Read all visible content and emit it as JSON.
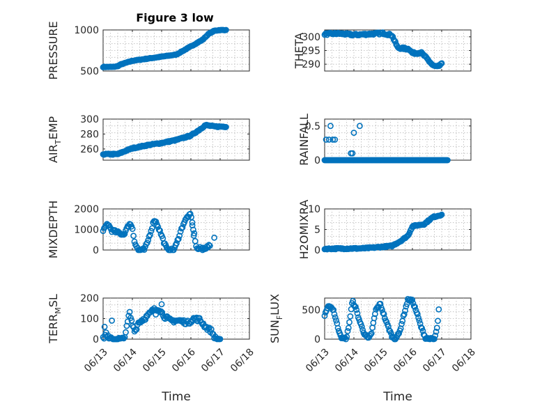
{
  "figure": {
    "title": "Figure 3 low"
  },
  "colors": {
    "marker": "#0072bd",
    "axis": "#262626",
    "grid": "#b8b8b8"
  },
  "chart_data": [
    {
      "type": "scatter",
      "id": "pressure",
      "ylabel": "PRESSURE",
      "ylabel_sub": "",
      "ylim": [
        500,
        1000
      ],
      "yticks": [
        500,
        1000
      ],
      "xlim": [
        0,
        5
      ],
      "show_xticklabels": false,
      "curve": [
        [
          0.0,
          550
        ],
        [
          0.35,
          550
        ],
        [
          0.5,
          560
        ],
        [
          0.6,
          580
        ],
        [
          1.0,
          625
        ],
        [
          1.5,
          650
        ],
        [
          2.0,
          675
        ],
        [
          2.5,
          700
        ],
        [
          2.8,
          760
        ],
        [
          3.1,
          820
        ],
        [
          3.4,
          880
        ],
        [
          3.6,
          950
        ],
        [
          3.8,
          990
        ],
        [
          4.0,
          1000
        ],
        [
          4.2,
          1000
        ]
      ],
      "n_points": 140,
      "scatter_spread": 4,
      "extra_points": []
    },
    {
      "type": "scatter",
      "id": "theta",
      "ylabel": "THETA",
      "ylabel_sub": "",
      "ylim": [
        287.5,
        302.5
      ],
      "yticks": [
        290,
        295,
        300
      ],
      "xlim": [
        0,
        5
      ],
      "show_xticklabels": false,
      "curve": [
        [
          0.0,
          301
        ],
        [
          0.5,
          301.2
        ],
        [
          1.0,
          300.7
        ],
        [
          1.5,
          301
        ],
        [
          2.0,
          301.3
        ],
        [
          2.3,
          300.6
        ],
        [
          2.5,
          296
        ],
        [
          2.9,
          295.5
        ],
        [
          3.0,
          294
        ],
        [
          3.3,
          294.2
        ],
        [
          3.5,
          292
        ],
        [
          3.7,
          289.5
        ],
        [
          3.85,
          289
        ],
        [
          4.0,
          290
        ]
      ],
      "n_points": 140,
      "scatter_spread": 0.35,
      "extra_points": []
    },
    {
      "type": "scatter",
      "id": "air_temp",
      "ylabel": "AIR",
      "ylabel_sub": "T",
      "ylabel_tail": "EMP",
      "ylim": [
        245,
        300
      ],
      "yticks": [
        260,
        280,
        300
      ],
      "xlim": [
        0,
        5
      ],
      "show_xticklabels": false,
      "curve": [
        [
          0.0,
          253
        ],
        [
          0.5,
          253
        ],
        [
          0.8,
          258
        ],
        [
          1.0,
          261
        ],
        [
          1.5,
          265
        ],
        [
          2.0,
          268
        ],
        [
          2.5,
          272
        ],
        [
          3.0,
          278
        ],
        [
          3.3,
          286
        ],
        [
          3.5,
          292
        ],
        [
          3.8,
          290
        ],
        [
          4.2,
          290
        ]
      ],
      "n_points": 140,
      "scatter_spread": 0.8,
      "extra_points": []
    },
    {
      "type": "scatter",
      "id": "rainfall",
      "ylabel": "RAINFALL",
      "ylabel_sub": "",
      "ylim": [
        0,
        0.6
      ],
      "yticks": [
        0,
        0.5
      ],
      "xlim": [
        0,
        5
      ],
      "show_xticklabels": false,
      "curve": [
        [
          0.0,
          0
        ],
        [
          4.2,
          0
        ]
      ],
      "n_points": 150,
      "scatter_spread": 0,
      "extra_points": [
        [
          0.05,
          0.3
        ],
        [
          0.15,
          0.3
        ],
        [
          0.2,
          0.5
        ],
        [
          0.28,
          0.3
        ],
        [
          0.35,
          0.3
        ],
        [
          0.9,
          0.1
        ],
        [
          0.95,
          0.1
        ],
        [
          1.0,
          0.4
        ],
        [
          1.2,
          0.5
        ]
      ]
    },
    {
      "type": "scatter",
      "id": "mixdepth",
      "ylabel": "MIXDEPTH",
      "ylabel_sub": "",
      "ylim": [
        0,
        2000
      ],
      "yticks": [
        0,
        1000,
        2000
      ],
      "xlim": [
        0,
        5
      ],
      "show_xticklabels": false,
      "curve": [
        [
          0.0,
          900
        ],
        [
          0.15,
          1300
        ],
        [
          0.3,
          950
        ],
        [
          0.5,
          850
        ],
        [
          0.7,
          750
        ],
        [
          0.8,
          1000
        ],
        [
          0.9,
          1300
        ],
        [
          1.0,
          1100
        ],
        [
          1.05,
          600
        ],
        [
          1.1,
          300
        ],
        [
          1.2,
          0
        ],
        [
          1.4,
          0
        ],
        [
          1.5,
          300
        ],
        [
          1.65,
          1000
        ],
        [
          1.75,
          1500
        ],
        [
          1.85,
          1250
        ],
        [
          2.0,
          700
        ],
        [
          2.1,
          300
        ],
        [
          2.2,
          0
        ],
        [
          2.4,
          0
        ],
        [
          2.5,
          250
        ],
        [
          2.6,
          700
        ],
        [
          2.75,
          1300
        ],
        [
          2.9,
          1650
        ],
        [
          3.0,
          1700
        ],
        [
          3.2,
          50
        ],
        [
          3.5,
          100
        ],
        [
          3.65,
          200
        ]
      ],
      "n_points": 110,
      "scatter_spread": 70,
      "extra_points": [
        [
          3.05,
          1200
        ],
        [
          3.1,
          700
        ],
        [
          3.8,
          600
        ],
        [
          2.3,
          0
        ],
        [
          3.4,
          0
        ]
      ]
    },
    {
      "type": "scatter",
      "id": "h2omixra",
      "ylabel": "H2OMIXRA",
      "ylabel_sub": "",
      "ylim": [
        0,
        10
      ],
      "yticks": [
        0,
        5,
        10
      ],
      "xlim": [
        0,
        5
      ],
      "show_xticklabels": false,
      "curve": [
        [
          0.0,
          0.3
        ],
        [
          1.3,
          0.4
        ],
        [
          1.7,
          0.6
        ],
        [
          2.3,
          1
        ],
        [
          2.6,
          2.2
        ],
        [
          2.85,
          3.5
        ],
        [
          3.0,
          5.8
        ],
        [
          3.4,
          6.3
        ],
        [
          3.7,
          8
        ],
        [
          4.0,
          8.6
        ]
      ],
      "n_points": 140,
      "scatter_spread": 0.15,
      "extra_points": []
    },
    {
      "type": "scatter",
      "id": "terr_msl",
      "ylabel": "TERR",
      "ylabel_sub": "M",
      "ylabel_tail": "SL",
      "ylim": [
        0,
        200
      ],
      "yticks": [
        0,
        100,
        200
      ],
      "xlim": [
        0,
        5
      ],
      "xticklabels": [
        "06/13",
        "06/14",
        "06/15",
        "06/16",
        "06/17",
        "06/18"
      ],
      "xlabel": "Time",
      "curve": [
        [
          0.0,
          0
        ],
        [
          0.1,
          30
        ],
        [
          0.2,
          0
        ],
        [
          0.5,
          0
        ],
        [
          0.7,
          0
        ],
        [
          0.8,
          50
        ],
        [
          0.9,
          130
        ],
        [
          1.0,
          70
        ],
        [
          1.1,
          40
        ],
        [
          1.2,
          80
        ],
        [
          1.5,
          110
        ],
        [
          1.7,
          140
        ],
        [
          1.9,
          150
        ],
        [
          2.1,
          110
        ],
        [
          2.3,
          90
        ],
        [
          2.6,
          90
        ],
        [
          2.9,
          80
        ],
        [
          3.1,
          100
        ],
        [
          3.3,
          95
        ],
        [
          3.5,
          60
        ],
        [
          3.7,
          40
        ],
        [
          3.85,
          0
        ],
        [
          4.0,
          0
        ]
      ],
      "n_points": 120,
      "scatter_spread": 10,
      "extra_points": [
        [
          0.05,
          60
        ],
        [
          0.3,
          90
        ],
        [
          2.45,
          90
        ],
        [
          3.2,
          90
        ],
        [
          2.0,
          170
        ],
        [
          1.8,
          120
        ]
      ]
    },
    {
      "type": "scatter",
      "id": "sun_flux",
      "ylabel": "SUN",
      "ylabel_sub": "F",
      "ylabel_tail": "LUX",
      "ylim": [
        0,
        700
      ],
      "yticks": [
        0,
        500
      ],
      "xlim": [
        0,
        5
      ],
      "xticklabels": [
        "06/13",
        "06/14",
        "06/15",
        "06/16",
        "06/17",
        "06/18"
      ],
      "xlabel": "Time",
      "curve": [
        [
          0.0,
          400
        ],
        [
          0.15,
          580
        ],
        [
          0.3,
          500
        ],
        [
          0.45,
          200
        ],
        [
          0.6,
          0
        ],
        [
          0.75,
          20
        ],
        [
          0.85,
          300
        ],
        [
          0.95,
          650
        ],
        [
          1.05,
          550
        ],
        [
          1.2,
          300
        ],
        [
          1.35,
          100
        ],
        [
          1.5,
          0
        ],
        [
          1.6,
          100
        ],
        [
          1.75,
          500
        ],
        [
          1.9,
          600
        ],
        [
          2.1,
          300
        ],
        [
          2.3,
          50
        ],
        [
          2.4,
          0
        ],
        [
          2.55,
          100
        ],
        [
          2.7,
          400
        ],
        [
          2.85,
          680
        ],
        [
          3.0,
          650
        ],
        [
          3.15,
          450
        ],
        [
          3.3,
          200
        ],
        [
          3.45,
          20
        ],
        [
          3.6,
          0
        ],
        [
          3.75,
          0
        ],
        [
          3.85,
          200
        ],
        [
          3.9,
          500
        ]
      ],
      "n_points": 130,
      "scatter_spread": 20,
      "extra_points": []
    }
  ]
}
